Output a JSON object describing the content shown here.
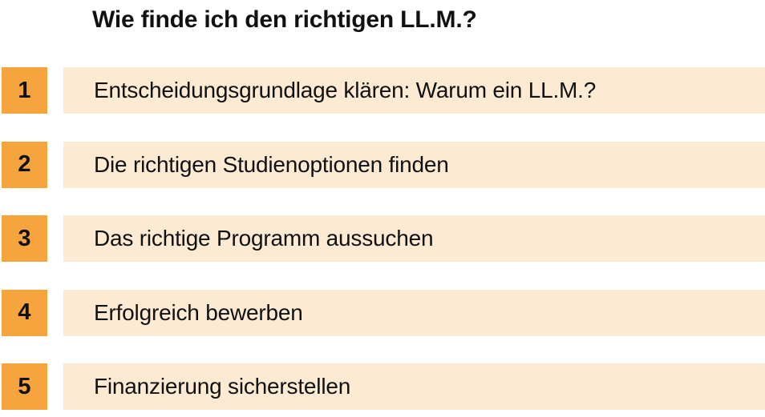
{
  "title": "Wie finde ich den richtigen LL.M.?",
  "colors": {
    "background": "#FFFFFF",
    "accent_orange": "#F6A53E",
    "bar_cream": "#FCEAD3",
    "text": "#111111"
  },
  "steps": [
    {
      "number": "1",
      "label": "Entscheidungsgrundlage klären: Warum ein LL.M.?"
    },
    {
      "number": "2",
      "label": "Die richtigen Studienoptionen finden"
    },
    {
      "number": "3",
      "label": "Das richtige Programm aussuchen"
    },
    {
      "number": "4",
      "label": "Erfolgreich bewerben"
    },
    {
      "number": "5",
      "label": "Finanzierung sicherstellen"
    }
  ]
}
